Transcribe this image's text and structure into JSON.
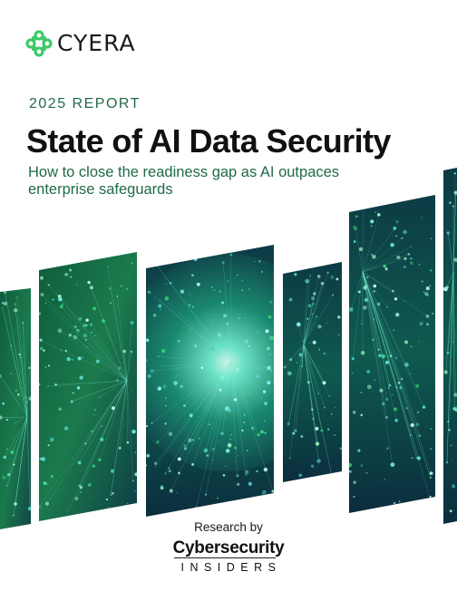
{
  "brand": {
    "name": "CYERA",
    "accent_color": "#3ec96a"
  },
  "report": {
    "eyebrow": "2025 REPORT",
    "title": "State of AI Data Security",
    "subtitle": "How to close the readiness gap as AI outpaces enterprise safeguards"
  },
  "footer": {
    "research_by": "Research by",
    "partner_line1": "Cybersecurity",
    "partner_line2": "INSIDERS"
  },
  "artwork": {
    "subject": "glowing network nodes",
    "colors": [
      "#0a2b3c",
      "#11604e",
      "#36d27a",
      "#7af3ee"
    ]
  }
}
